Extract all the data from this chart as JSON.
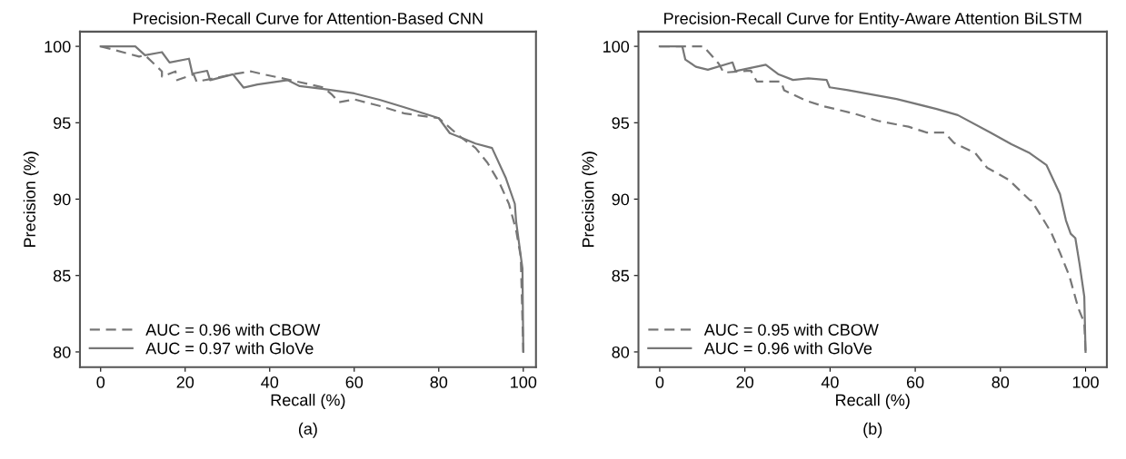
{
  "chart_data": [
    {
      "type": "line",
      "title": "Precision-Recall Curve for Attention-Based CNN",
      "xlabel": "Recall (%)",
      "ylabel": "Precision (%)",
      "annotations": [
        "(a)"
      ],
      "xlim": [
        -4.9,
        103
      ],
      "ylim": [
        79,
        100.96
      ],
      "xticks": [
        0,
        20,
        40,
        60,
        80,
        100
      ],
      "yticks": [
        80,
        85,
        90,
        95,
        100
      ],
      "grid": false,
      "legend": "bottom left",
      "marker": "none",
      "series": [
        {
          "name": "AUC = 0.96 with CBOW",
          "color": "#777777",
          "line_style": "dashed",
          "x": [
            0,
            9.1,
            10.5,
            14.5,
            14.5,
            17.7,
            18.1,
            22.0,
            22.7,
            26.3,
            31.3,
            35.6,
            38.5,
            43.5,
            52.8,
            54.8,
            56.4,
            60.0,
            66,
            72,
            80,
            85,
            88.7,
            91.5,
            94.4,
            96.6,
            98.3,
            99.4,
            100
          ],
          "values": [
            100,
            99.33,
            99.42,
            98.36,
            98.02,
            98.36,
            97.79,
            98.17,
            97.69,
            97.88,
            98.17,
            98.36,
            98.17,
            97.88,
            97.3,
            96.82,
            96.34,
            96.53,
            96.1,
            95.6,
            95.3,
            94.1,
            93.35,
            92.39,
            91.04,
            89.69,
            87.96,
            86.23,
            80
          ]
        },
        {
          "name": "AUC = 0.97 with GloVe",
          "color": "#777777",
          "line_style": "solid",
          "x": [
            0,
            8.2,
            10.5,
            14.5,
            16.3,
            20.9,
            21.7,
            25.2,
            25.9,
            31.3,
            33.8,
            37.1,
            44.2,
            47.1,
            52.8,
            60.0,
            66,
            72,
            80,
            82.6,
            88.7,
            92.6,
            95.8,
            98.0,
            98.3,
            99.8,
            100
          ],
          "values": [
            100,
            100,
            99.42,
            99.62,
            98.94,
            99.19,
            98.21,
            98.4,
            97.79,
            98.17,
            97.3,
            97.5,
            97.79,
            97.4,
            97.21,
            96.92,
            96.5,
            96.0,
            95.3,
            94.32,
            93.64,
            93.35,
            91.43,
            89.69,
            88.54,
            85.46,
            80
          ]
        }
      ]
    },
    {
      "type": "line",
      "title": "Precision-Recall Curve for Entity-Aware Attention BiLSTM",
      "xlabel": "Recall (%)",
      "ylabel": "Precision (%)",
      "annotations": [
        "(b)"
      ],
      "xlim": [
        -5,
        105
      ],
      "ylim": [
        79,
        100.96
      ],
      "xticks": [
        0,
        20,
        40,
        60,
        80,
        100
      ],
      "yticks": [
        80,
        85,
        90,
        95,
        100
      ],
      "grid": false,
      "legend": "bottom left",
      "marker": "none",
      "series": [
        {
          "name": "AUC = 0.95 with CBOW",
          "color": "#777777",
          "line_style": "dashed",
          "x": [
            0,
            10.3,
            13.9,
            15.0,
            21.4,
            22.8,
            28.5,
            29.2,
            34.2,
            38.5,
            45.6,
            51.3,
            58.4,
            62.7,
            66.9,
            69.1,
            74.1,
            76.9,
            81.9,
            86.9,
            87.3,
            89.8,
            91.9,
            94.0,
            96.2,
            98.3,
            99.7,
            100
          ],
          "values": [
            100,
            100,
            98.85,
            98.28,
            98.41,
            97.7,
            97.7,
            97.13,
            96.46,
            96.08,
            95.6,
            95.12,
            94.74,
            94.36,
            94.36,
            93.68,
            93.01,
            92.05,
            91.28,
            89.94,
            89.9,
            88.79,
            87.83,
            86.49,
            84.97,
            82.86,
            81.9,
            80
          ]
        },
        {
          "name": "AUC = 0.96 with GloVe",
          "color": "#777777",
          "line_style": "solid",
          "x": [
            0,
            5.3,
            6.0,
            8.5,
            11.3,
            17.1,
            17.8,
            24.9,
            27.8,
            31.3,
            34.9,
            39.2,
            39.9,
            44.2,
            55.6,
            58.4,
            65,
            70,
            77.6,
            82.6,
            86.9,
            90.8,
            94.0,
            95.4,
            96.5,
            97.6,
            98.6,
            99.7,
            100
          ],
          "values": [
            100,
            100,
            99.14,
            98.66,
            98.47,
            98.95,
            98.38,
            98.8,
            98.18,
            97.8,
            97.9,
            97.8,
            97.32,
            97.13,
            96.55,
            96.36,
            95.9,
            95.5,
            94.36,
            93.59,
            93.01,
            92.24,
            90.33,
            88.6,
            87.74,
            87.45,
            85.73,
            83.62,
            80
          ]
        }
      ]
    }
  ]
}
